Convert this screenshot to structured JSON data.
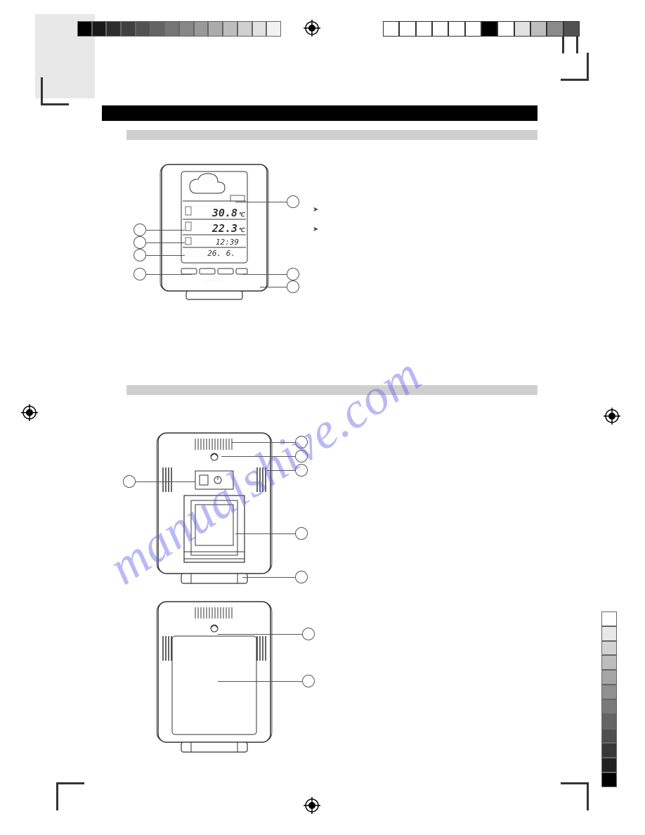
{
  "watermark": "manualshive.com",
  "top_strip_left_grays": [
    "#000000",
    "#1a1a1a",
    "#2e2e2e",
    "#404040",
    "#525252",
    "#636363",
    "#757575",
    "#878787",
    "#999999",
    "#ababab",
    "#bdbdbd",
    "#cfcfcf",
    "#e1e1e1",
    "#f2f2f2"
  ],
  "top_strip_right_grays": [
    "#ffffff",
    "#ffffff",
    "#ffffff",
    "#ffffff",
    "#ffffff",
    "#ffffff",
    "#000000",
    "#ffffff",
    "#e1e1e1",
    "#bdbdbd",
    "#8a8a8a",
    "#525252"
  ],
  "vertical_strip_grays": [
    "#ffffff",
    "#e8e8e8",
    "#d2d2d2",
    "#bcbcbc",
    "#a6a6a6",
    "#909090",
    "#7a7a7a",
    "#646464",
    "#4e4e4e",
    "#383838",
    "#222222",
    "#000000"
  ],
  "device_front": {
    "display_text_1": "30.8",
    "display_text_2": "22.3",
    "display_text_3": "12:39",
    "display_text_4": "26. 6."
  },
  "callouts_front": {
    "left": [
      "",
      "",
      "",
      ""
    ],
    "right": [
      "",
      "",
      ""
    ]
  },
  "callouts_back_upper": {
    "left": [
      ""
    ],
    "right": [
      "",
      "",
      "",
      ""
    ]
  },
  "callouts_back_lower": {
    "right": [
      "",
      ""
    ]
  },
  "colors": {
    "header_bar": "#000000",
    "section_bar": "#cfcfcf",
    "line": "#555555",
    "background": "#ffffff",
    "watermark": "rgba(99,99,230,0.45)",
    "text": "#444444"
  }
}
